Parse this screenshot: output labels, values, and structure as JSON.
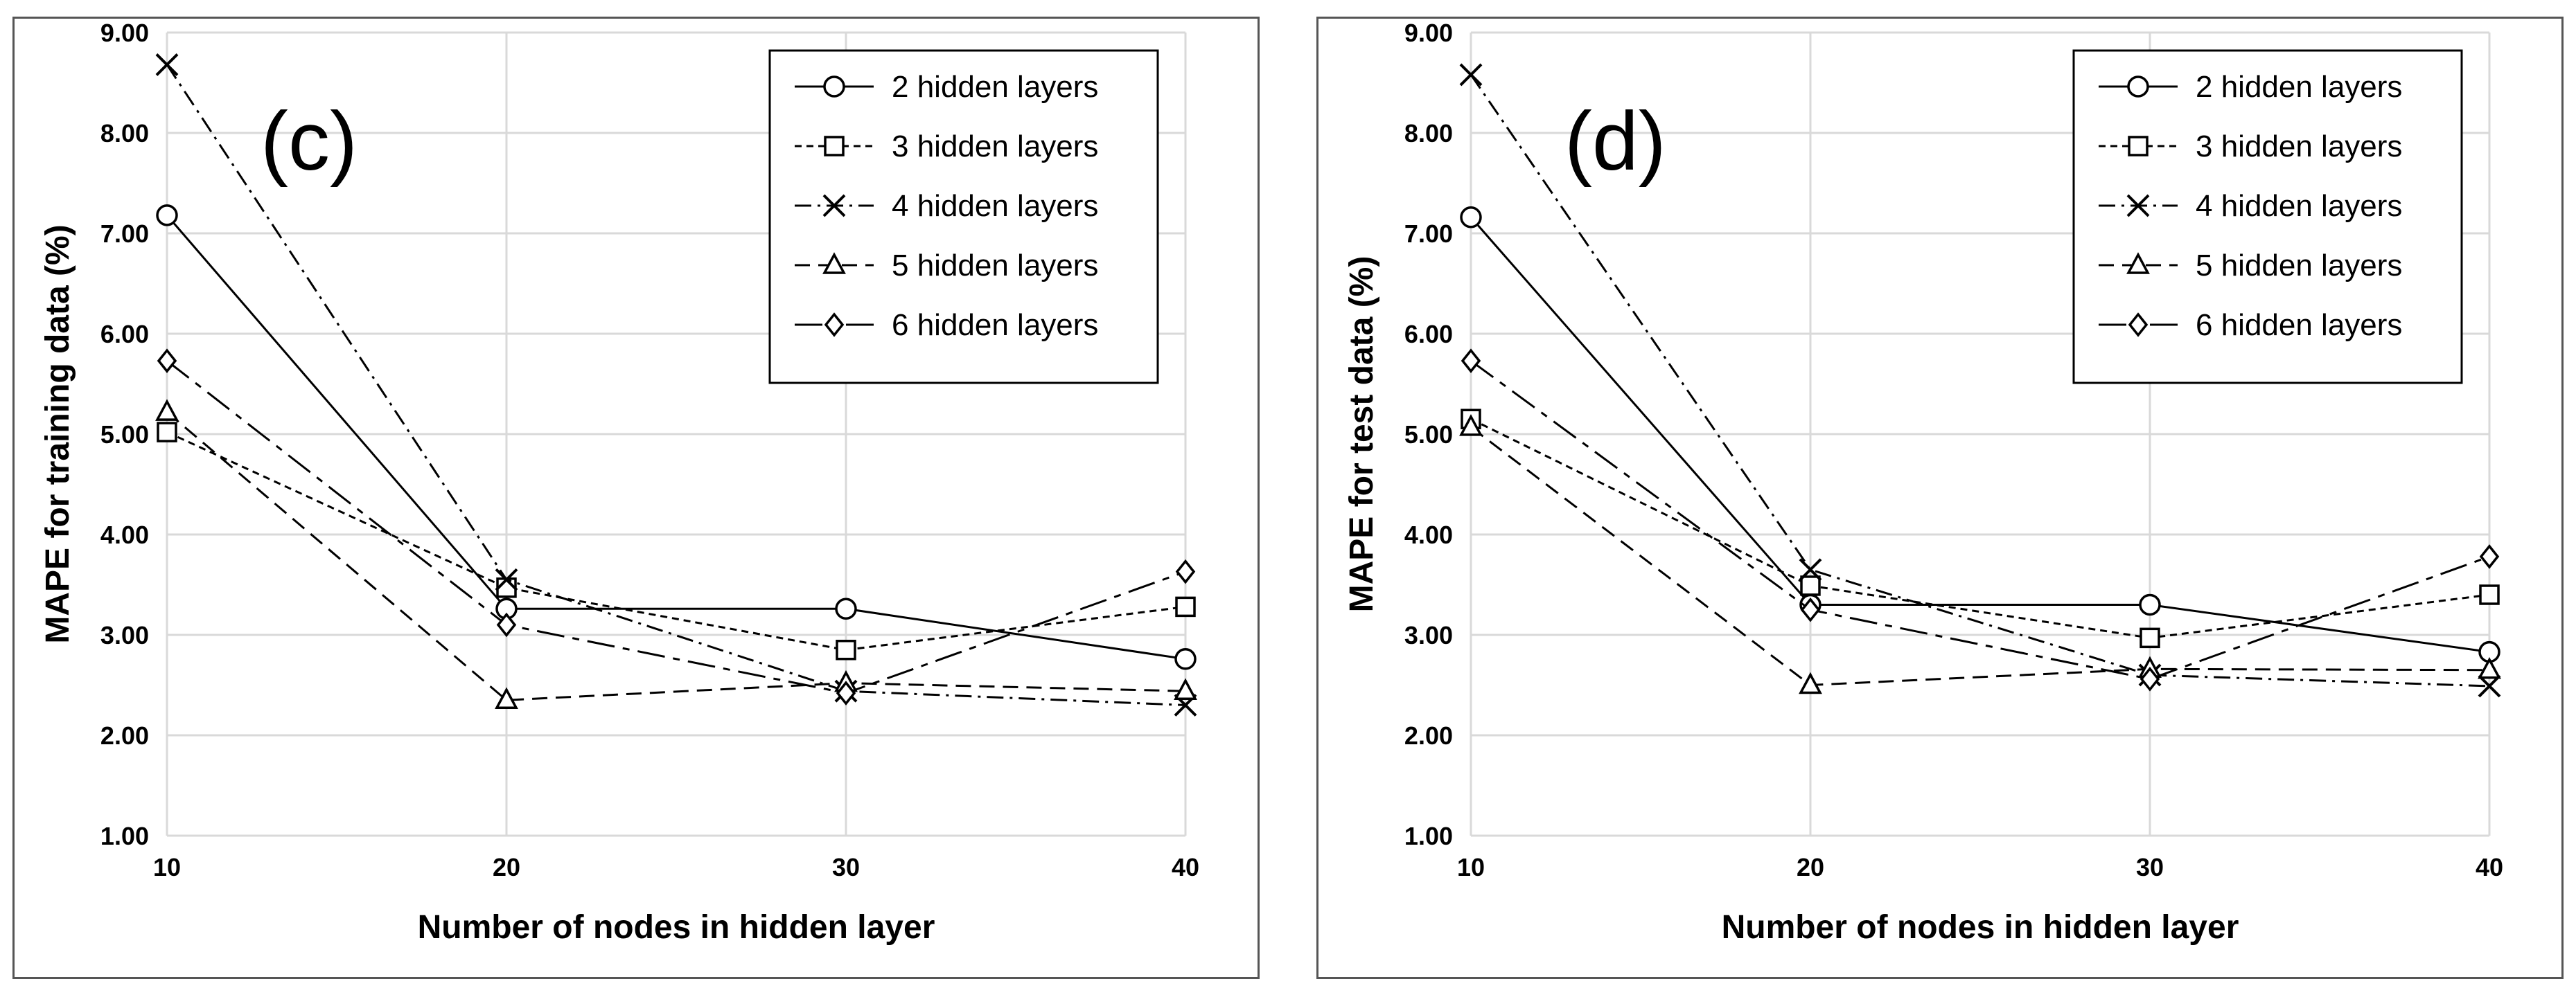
{
  "chart_data": [
    {
      "type": "line",
      "panel_label": "(c)",
      "xlabel": "Number of nodes in hidden layer",
      "ylabel": "MAPE for training data (%)",
      "x": [
        10,
        20,
        30,
        40
      ],
      "xticks": [
        "10",
        "20",
        "30",
        "40"
      ],
      "ylim": [
        1.0,
        9.0
      ],
      "yticks": [
        "1.00",
        "2.00",
        "3.00",
        "4.00",
        "5.00",
        "6.00",
        "7.00",
        "8.00",
        "9.00"
      ],
      "grid": true,
      "legend_position": "top-right",
      "series": [
        {
          "name": "2 hidden layers",
          "values": [
            7.18,
            3.26,
            3.26,
            2.76
          ],
          "marker": "circle",
          "dash": "solid"
        },
        {
          "name": "3 hidden layers",
          "values": [
            5.02,
            3.47,
            2.85,
            3.28
          ],
          "marker": "square",
          "dash": "dot"
        },
        {
          "name": "4 hidden layers",
          "values": [
            8.68,
            3.55,
            2.44,
            2.3
          ],
          "marker": "x",
          "dash": "dashdot"
        },
        {
          "name": "5 hidden layers",
          "values": [
            5.22,
            2.35,
            2.52,
            2.44
          ],
          "marker": "triangle",
          "dash": "dash"
        },
        {
          "name": "6 hidden layers",
          "values": [
            5.73,
            3.1,
            2.42,
            3.63
          ],
          "marker": "diamond",
          "dash": "longdash"
        }
      ]
    },
    {
      "type": "line",
      "panel_label": "(d)",
      "xlabel": "Number of nodes in hidden layer",
      "ylabel": "MAPE for test data (%)",
      "x": [
        10,
        20,
        30,
        40
      ],
      "xticks": [
        "10",
        "20",
        "30",
        "40"
      ],
      "ylim": [
        1.0,
        9.0
      ],
      "yticks": [
        "1.00",
        "2.00",
        "3.00",
        "4.00",
        "5.00",
        "6.00",
        "7.00",
        "8.00",
        "9.00"
      ],
      "grid": true,
      "legend_position": "top-right",
      "series": [
        {
          "name": "2 hidden layers",
          "values": [
            7.16,
            3.3,
            3.3,
            2.83
          ],
          "marker": "circle",
          "dash": "solid"
        },
        {
          "name": "3 hidden layers",
          "values": [
            5.15,
            3.49,
            2.97,
            3.4
          ],
          "marker": "square",
          "dash": "dot"
        },
        {
          "name": "4 hidden layers",
          "values": [
            8.58,
            3.65,
            2.6,
            2.49
          ],
          "marker": "x",
          "dash": "dashdot"
        },
        {
          "name": "5 hidden layers",
          "values": [
            5.07,
            2.5,
            2.66,
            2.65
          ],
          "marker": "triangle",
          "dash": "dash"
        },
        {
          "name": "6 hidden layers",
          "values": [
            5.73,
            3.25,
            2.56,
            3.78
          ],
          "marker": "diamond",
          "dash": "longdash"
        }
      ]
    }
  ]
}
